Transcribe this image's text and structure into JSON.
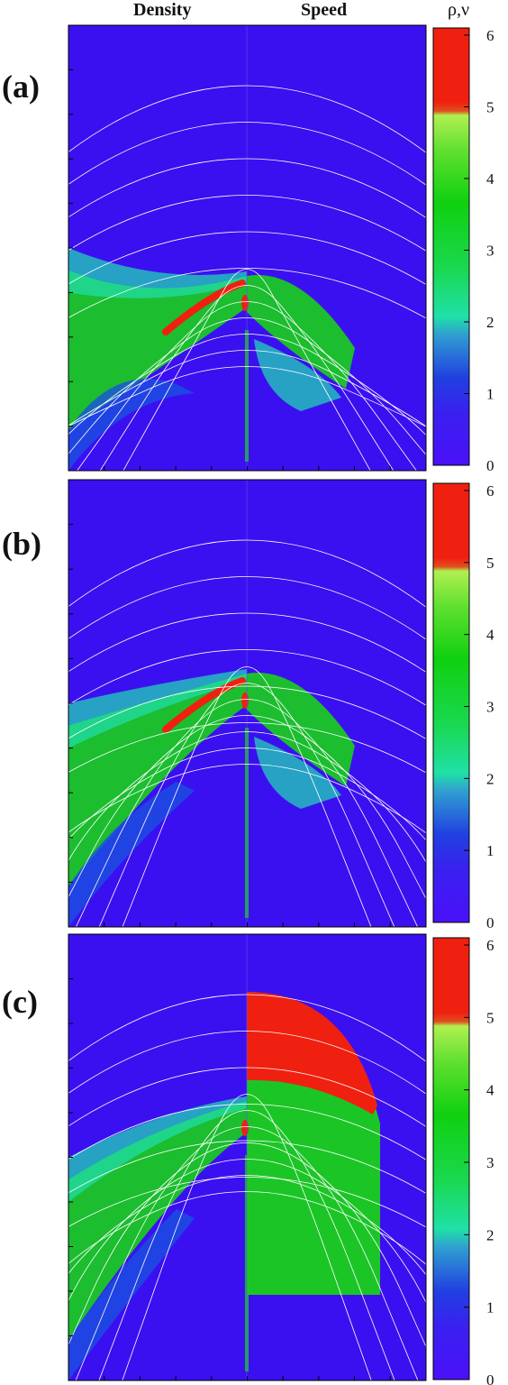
{
  "header": {
    "left_label": "Density",
    "right_label": "Speed",
    "colorbar_title": "ρ,ν"
  },
  "panels": [
    {
      "label": "(a)"
    },
    {
      "label": "(b)"
    },
    {
      "label": "(c)"
    }
  ],
  "colors": {
    "background": "#3a10f0",
    "low": "#2a18e8",
    "mid_blue": "#1a50e0",
    "cyan": "#20e0b0",
    "green": "#1ad01a",
    "light_green": "#9af040",
    "red": "#f02010",
    "field_line": "#ffffff"
  },
  "chart_data": [
    {
      "type": "heatmap",
      "panel": "(a)",
      "quantities": [
        "Density",
        "Speed"
      ],
      "colorbar": {
        "label": "ρ,ν",
        "ticks": [
          0,
          1,
          2,
          3,
          4,
          5,
          6
        ],
        "range": [
          0,
          6.1
        ]
      },
      "grid": false
    },
    {
      "type": "heatmap",
      "panel": "(b)",
      "quantities": [
        "Density",
        "Speed"
      ],
      "colorbar": {
        "label": "ρ,ν",
        "ticks": [
          0,
          1,
          2,
          3,
          4,
          5,
          6
        ],
        "range": [
          0,
          6.1
        ]
      },
      "grid": false
    },
    {
      "type": "heatmap",
      "panel": "(c)",
      "quantities": [
        "Density",
        "Speed"
      ],
      "colorbar": {
        "label": "ρ,ν",
        "ticks": [
          0,
          1,
          2,
          3,
          4,
          5,
          6
        ],
        "range": [
          0,
          6.1
        ]
      },
      "grid": false
    }
  ]
}
